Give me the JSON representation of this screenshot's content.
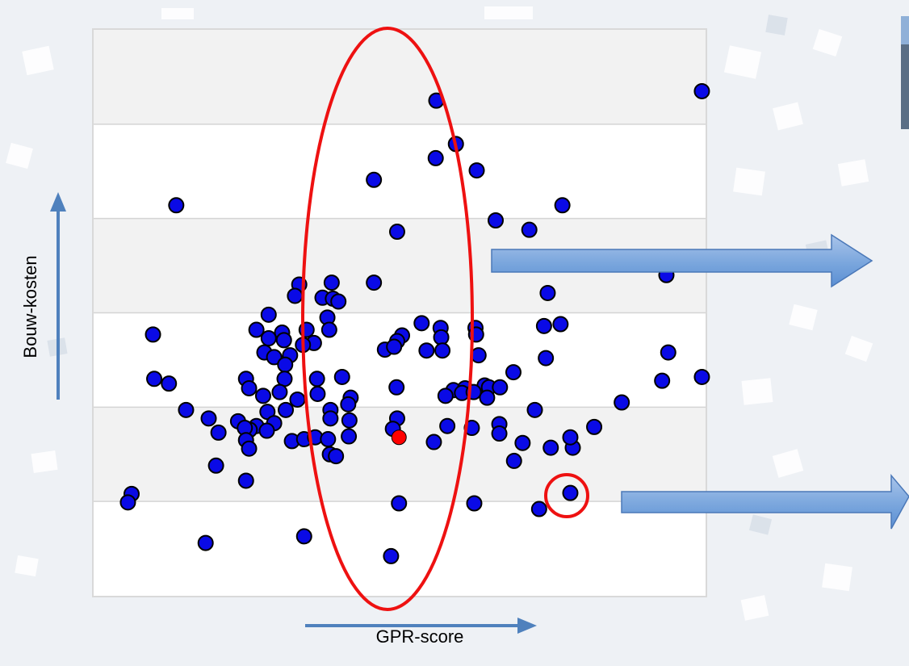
{
  "chart_data": {
    "type": "scatter",
    "title": "",
    "xlabel": "GPR-score",
    "ylabel": "Bouw-kosten",
    "xlim": [
      0,
      100
    ],
    "ylim": [
      0,
      6
    ],
    "grid": true,
    "point_color": "#0a0ae6",
    "highlight_color": "#ff0000",
    "highlight_point": {
      "x": 49.9,
      "y": 1.68
    },
    "points": [
      {
        "x": 56.0,
        "y": 5.25
      },
      {
        "x": 99.4,
        "y": 5.35
      },
      {
        "x": 59.2,
        "y": 4.79
      },
      {
        "x": 55.9,
        "y": 4.64
      },
      {
        "x": 62.6,
        "y": 4.51
      },
      {
        "x": 45.8,
        "y": 4.41
      },
      {
        "x": 13.5,
        "y": 4.14
      },
      {
        "x": 76.6,
        "y": 4.14
      },
      {
        "x": 65.7,
        "y": 3.98
      },
      {
        "x": 71.2,
        "y": 3.88
      },
      {
        "x": 49.6,
        "y": 3.86
      },
      {
        "x": 93.6,
        "y": 3.4
      },
      {
        "x": 33.6,
        "y": 3.3
      },
      {
        "x": 38.9,
        "y": 3.32
      },
      {
        "x": 45.8,
        "y": 3.32
      },
      {
        "x": 32.9,
        "y": 3.18
      },
      {
        "x": 37.4,
        "y": 3.16
      },
      {
        "x": 39.1,
        "y": 3.15
      },
      {
        "x": 40.0,
        "y": 3.12
      },
      {
        "x": 74.2,
        "y": 3.21
      },
      {
        "x": 28.6,
        "y": 2.98
      },
      {
        "x": 38.2,
        "y": 2.95
      },
      {
        "x": 53.6,
        "y": 2.89
      },
      {
        "x": 56.7,
        "y": 2.84
      },
      {
        "x": 62.4,
        "y": 2.84
      },
      {
        "x": 73.6,
        "y": 2.86
      },
      {
        "x": 76.3,
        "y": 2.88
      },
      {
        "x": 9.7,
        "y": 2.77
      },
      {
        "x": 26.6,
        "y": 2.82
      },
      {
        "x": 30.8,
        "y": 2.79
      },
      {
        "x": 34.8,
        "y": 2.82
      },
      {
        "x": 38.5,
        "y": 2.82
      },
      {
        "x": 50.4,
        "y": 2.76
      },
      {
        "x": 49.6,
        "y": 2.7
      },
      {
        "x": 56.8,
        "y": 2.74
      },
      {
        "x": 62.5,
        "y": 2.77
      },
      {
        "x": 28.6,
        "y": 2.73
      },
      {
        "x": 31.1,
        "y": 2.71
      },
      {
        "x": 36.0,
        "y": 2.68
      },
      {
        "x": 34.2,
        "y": 2.66
      },
      {
        "x": 47.6,
        "y": 2.61
      },
      {
        "x": 54.4,
        "y": 2.6
      },
      {
        "x": 57.0,
        "y": 2.6
      },
      {
        "x": 49.1,
        "y": 2.64
      },
      {
        "x": 93.9,
        "y": 2.58
      },
      {
        "x": 27.9,
        "y": 2.58
      },
      {
        "x": 32.1,
        "y": 2.55
      },
      {
        "x": 62.9,
        "y": 2.55
      },
      {
        "x": 73.9,
        "y": 2.52
      },
      {
        "x": 29.5,
        "y": 2.53
      },
      {
        "x": 31.3,
        "y": 2.45
      },
      {
        "x": 9.9,
        "y": 2.3
      },
      {
        "x": 12.3,
        "y": 2.25
      },
      {
        "x": 24.9,
        "y": 2.3
      },
      {
        "x": 31.2,
        "y": 2.3
      },
      {
        "x": 36.5,
        "y": 2.3
      },
      {
        "x": 40.6,
        "y": 2.32
      },
      {
        "x": 68.6,
        "y": 2.37
      },
      {
        "x": 92.9,
        "y": 2.28
      },
      {
        "x": 99.4,
        "y": 2.32
      },
      {
        "x": 25.4,
        "y": 2.2
      },
      {
        "x": 30.4,
        "y": 2.16
      },
      {
        "x": 49.5,
        "y": 2.21
      },
      {
        "x": 58.8,
        "y": 2.18
      },
      {
        "x": 60.7,
        "y": 2.2
      },
      {
        "x": 63.9,
        "y": 2.23
      },
      {
        "x": 64.6,
        "y": 2.21
      },
      {
        "x": 66.4,
        "y": 2.21
      },
      {
        "x": 27.7,
        "y": 2.12
      },
      {
        "x": 33.3,
        "y": 2.08
      },
      {
        "x": 36.6,
        "y": 2.14
      },
      {
        "x": 42.0,
        "y": 2.1
      },
      {
        "x": 57.5,
        "y": 2.12
      },
      {
        "x": 60.2,
        "y": 2.15
      },
      {
        "x": 62.1,
        "y": 2.16
      },
      {
        "x": 64.3,
        "y": 2.1
      },
      {
        "x": 86.3,
        "y": 2.05
      },
      {
        "x": 15.1,
        "y": 1.97
      },
      {
        "x": 28.4,
        "y": 1.95
      },
      {
        "x": 31.4,
        "y": 1.97
      },
      {
        "x": 38.7,
        "y": 1.97
      },
      {
        "x": 41.6,
        "y": 2.03
      },
      {
        "x": 72.1,
        "y": 1.97
      },
      {
        "x": 18.8,
        "y": 1.88
      },
      {
        "x": 23.6,
        "y": 1.85
      },
      {
        "x": 26.6,
        "y": 1.8
      },
      {
        "x": 29.5,
        "y": 1.83
      },
      {
        "x": 38.7,
        "y": 1.88
      },
      {
        "x": 41.8,
        "y": 1.86
      },
      {
        "x": 49.6,
        "y": 1.88
      },
      {
        "x": 66.3,
        "y": 1.82
      },
      {
        "x": 20.4,
        "y": 1.73
      },
      {
        "x": 25.5,
        "y": 1.76
      },
      {
        "x": 24.7,
        "y": 1.78
      },
      {
        "x": 28.3,
        "y": 1.75
      },
      {
        "x": 48.9,
        "y": 1.77
      },
      {
        "x": 57.8,
        "y": 1.8
      },
      {
        "x": 61.8,
        "y": 1.78
      },
      {
        "x": 66.3,
        "y": 1.72
      },
      {
        "x": 81.8,
        "y": 1.79
      },
      {
        "x": 24.9,
        "y": 1.65
      },
      {
        "x": 32.4,
        "y": 1.64
      },
      {
        "x": 34.4,
        "y": 1.66
      },
      {
        "x": 36.2,
        "y": 1.68
      },
      {
        "x": 38.3,
        "y": 1.66
      },
      {
        "x": 41.7,
        "y": 1.69
      },
      {
        "x": 55.6,
        "y": 1.63
      },
      {
        "x": 70.1,
        "y": 1.62
      },
      {
        "x": 74.7,
        "y": 1.57
      },
      {
        "x": 78.3,
        "y": 1.57
      },
      {
        "x": 77.9,
        "y": 1.68
      },
      {
        "x": 25.4,
        "y": 1.56
      },
      {
        "x": 38.6,
        "y": 1.5
      },
      {
        "x": 39.6,
        "y": 1.48
      },
      {
        "x": 20.0,
        "y": 1.38
      },
      {
        "x": 68.7,
        "y": 1.43
      },
      {
        "x": 24.9,
        "y": 1.22
      },
      {
        "x": 6.2,
        "y": 1.08
      },
      {
        "x": 5.6,
        "y": 0.99
      },
      {
        "x": 49.9,
        "y": 0.98
      },
      {
        "x": 62.2,
        "y": 0.98
      },
      {
        "x": 72.8,
        "y": 0.92
      },
      {
        "x": 77.9,
        "y": 1.09
      },
      {
        "x": 18.3,
        "y": 0.56
      },
      {
        "x": 34.4,
        "y": 0.63
      },
      {
        "x": 48.6,
        "y": 0.42
      }
    ]
  }
}
